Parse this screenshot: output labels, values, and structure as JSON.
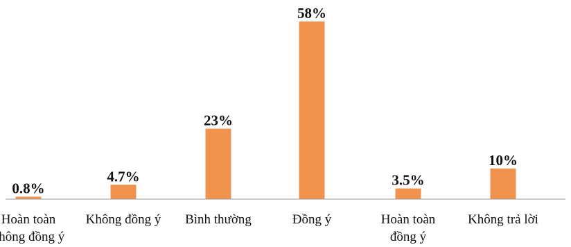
{
  "chart_data": {
    "type": "bar",
    "title": "",
    "xlabel": "",
    "ylabel": "",
    "ylim": [
      0,
      58
    ],
    "grid": false,
    "legend": "none",
    "categories": [
      [
        "Hoàn toàn",
        "không đồng ý"
      ],
      [
        "Không đồng ý"
      ],
      [
        "Bình thường"
      ],
      [
        "Đồng ý"
      ],
      [
        "Hoàn toàn",
        "đồng ý"
      ],
      [
        "Không trả lời"
      ]
    ],
    "values": [
      0.8,
      4.7,
      23,
      58,
      3.5,
      10
    ],
    "value_labels": [
      "0.8%",
      "4.7%",
      "23%",
      "58%",
      "3.5%",
      "10%"
    ],
    "bar_color": "#f0934f"
  }
}
